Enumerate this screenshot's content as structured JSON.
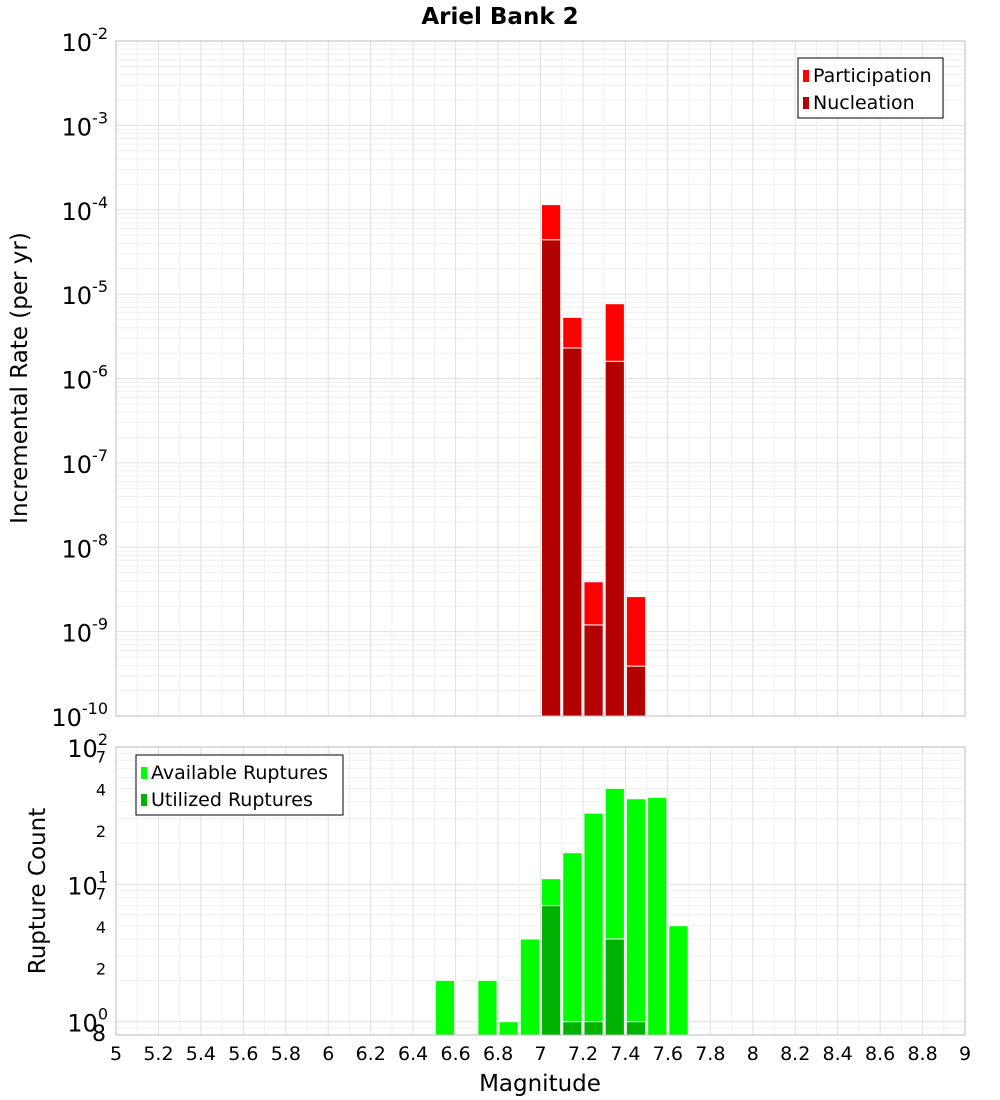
{
  "chart_data": [
    {
      "type": "bar",
      "title": "Ariel Bank 2",
      "xlabel": "",
      "ylabel": "Incremental Rate (per yr)",
      "yscale": "log",
      "ylim": [
        1e-10,
        0.01
      ],
      "xlim": [
        5,
        9
      ],
      "bin_width": 0.1,
      "y_tick_exponents": [
        "-10",
        "-9",
        "-8",
        "-7",
        "-6",
        "-5",
        "-4",
        "-3",
        "-2"
      ],
      "y_tick_base": "10",
      "legend_position": "top-right",
      "grid": true,
      "series": [
        {
          "name": "Participation",
          "color": "#ff0000",
          "x": [
            7.05,
            7.15,
            7.25,
            7.35,
            7.45
          ],
          "values": [
            0.000115,
            5.3e-06,
            3.9e-09,
            7.7e-06,
            2.6e-09
          ]
        },
        {
          "name": "Nucleation",
          "color": "#b30000",
          "x": [
            7.05,
            7.15,
            7.25,
            7.35,
            7.45
          ],
          "values": [
            4.4e-05,
            2.3e-06,
            1.2e-09,
            1.6e-06,
            3.9e-10
          ]
        }
      ]
    },
    {
      "type": "bar",
      "title": "",
      "xlabel": "Magnitude",
      "ylabel": "Rupture Count",
      "yscale": "log",
      "ylim": [
        0.8,
        100
      ],
      "xlim": [
        5,
        9
      ],
      "bin_width": 0.1,
      "x_ticks": [
        "5",
        "5.2",
        "5.4",
        "5.6",
        "5.8",
        "6",
        "6.2",
        "6.4",
        "6.6",
        "6.8",
        "7",
        "7.2",
        "7.4",
        "7.6",
        "7.8",
        "8",
        "8.2",
        "8.4",
        "8.6",
        "8.8",
        "9"
      ],
      "y_major_ticks": [
        {
          "value": 1,
          "base": "10",
          "exp": "0"
        },
        {
          "value": 10,
          "base": "10",
          "exp": "1"
        },
        {
          "value": 100,
          "base": "10",
          "exp": "2"
        }
      ],
      "y_minor_ticks": [
        {
          "value": 0.8,
          "label": "8"
        },
        {
          "value": 2,
          "label": "2"
        },
        {
          "value": 4,
          "label": "4"
        },
        {
          "value": 7,
          "label": "7"
        },
        {
          "value": 20,
          "label": "2"
        },
        {
          "value": 40,
          "label": "4"
        },
        {
          "value": 70,
          "label": "7"
        }
      ],
      "legend_position": "top-left",
      "grid": true,
      "series": [
        {
          "name": "Available Ruptures",
          "color": "#00ff00",
          "x": [
            6.55,
            6.75,
            6.85,
            6.95,
            7.05,
            7.15,
            7.25,
            7.35,
            7.45,
            7.55,
            7.65
          ],
          "values": [
            2,
            2,
            1,
            4,
            11,
            17,
            33,
            50,
            42,
            43,
            5
          ]
        },
        {
          "name": "Utilized Ruptures",
          "color": "#00b300",
          "x": [
            7.05,
            7.15,
            7.25,
            7.35,
            7.45
          ],
          "values": [
            7,
            1,
            1,
            4,
            1
          ]
        }
      ]
    }
  ]
}
